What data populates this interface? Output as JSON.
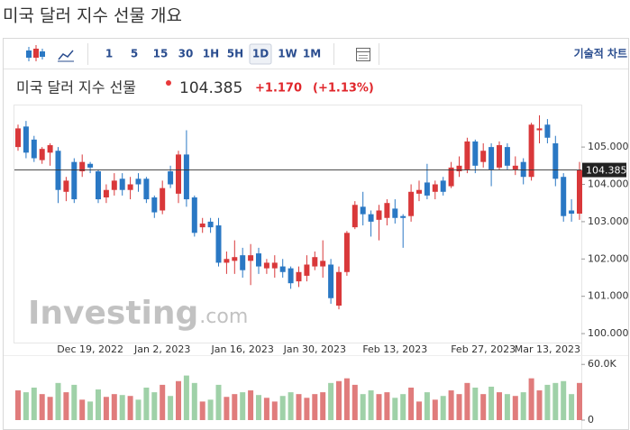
{
  "header": {
    "title": "미국 달러 지수 선물 개요",
    "instrument": "미국 달러 지수 선물",
    "last_price": "104.385",
    "change": "+1.170",
    "change_percent": "(+1.13%)"
  },
  "toolbar": {
    "intervals": [
      "1",
      "5",
      "15",
      "30",
      "1H",
      "5H",
      "1D",
      "1W",
      "1M"
    ],
    "selected": "1D",
    "technical_chart": "기술적 차트"
  },
  "watermark": {
    "brand": "Investing",
    "suffix": ".com"
  },
  "chart_data": {
    "type": "candlestick",
    "categories": [
      null,
      null,
      null,
      null,
      null,
      null,
      null,
      null,
      null,
      "Dec 19, 2022",
      null,
      null,
      null,
      null,
      null,
      null,
      null,
      null,
      "Jan 2, 2023",
      null,
      null,
      null,
      null,
      null,
      null,
      null,
      null,
      null,
      "Jan 16, 2023",
      null,
      null,
      null,
      null,
      null,
      null,
      null,
      null,
      "Jan 30, 2023",
      null,
      null,
      null,
      null,
      null,
      null,
      null,
      null,
      null,
      "Feb 13, 2023",
      null,
      null,
      null,
      null,
      null,
      null,
      null,
      null,
      null,
      null,
      "Feb 27, 2023",
      null,
      null,
      null,
      null,
      null,
      null,
      null,
      "Mar 13, 2023",
      null,
      null,
      null,
      null
    ],
    "open": [
      105.0,
      105.55,
      105.2,
      104.65,
      104.85,
      104.9,
      103.8,
      104.6,
      104.35,
      104.55,
      104.35,
      103.65,
      103.85,
      104.15,
      103.85,
      104.15,
      104.15,
      103.65,
      103.3,
      104.35,
      103.75,
      104.8,
      103.65,
      102.85,
      103.0,
      102.9,
      101.9,
      101.95,
      102.1,
      101.95,
      102.15,
      101.75,
      101.75,
      101.8,
      101.75,
      101.4,
      101.55,
      101.8,
      101.8,
      101.85,
      100.75,
      101.65,
      102.85,
      103.4,
      103.2,
      103.05,
      103.1,
      103.35,
      103.15,
      103.15,
      103.75,
      104.05,
      103.8,
      104.1,
      103.95,
      104.35,
      104.4,
      105.15,
      104.6,
      105.0,
      104.45,
      105.0,
      104.4,
      104.6,
      104.2,
      105.45,
      105.6,
      105.1,
      104.2,
      103.3,
      103.215
    ],
    "high": [
      105.6,
      105.7,
      105.3,
      105.0,
      105.1,
      105.0,
      104.2,
      104.7,
      104.8,
      104.6,
      104.4,
      104.0,
      104.3,
      104.3,
      104.2,
      104.3,
      104.2,
      103.7,
      104.1,
      104.5,
      104.9,
      105.45,
      103.7,
      103.1,
      103.1,
      103.1,
      102.2,
      102.5,
      102.3,
      102.4,
      102.3,
      102.0,
      102.1,
      102.0,
      101.8,
      101.8,
      102.1,
      102.2,
      102.5,
      102.0,
      101.8,
      102.75,
      103.55,
      103.8,
      103.3,
      103.45,
      103.6,
      103.6,
      103.2,
      104.0,
      104.1,
      104.55,
      104.1,
      104.2,
      104.6,
      104.75,
      105.25,
      105.2,
      105.1,
      105.1,
      105.15,
      105.1,
      104.75,
      104.7,
      105.65,
      105.85,
      105.75,
      105.3,
      104.3,
      103.6,
      104.6
    ],
    "low": [
      104.9,
      104.7,
      104.6,
      104.55,
      104.5,
      103.5,
      103.55,
      103.5,
      104.2,
      104.3,
      103.5,
      103.5,
      103.7,
      103.7,
      103.6,
      103.8,
      103.5,
      103.1,
      103.2,
      103.9,
      103.5,
      103.4,
      102.6,
      102.7,
      102.7,
      101.8,
      101.6,
      101.6,
      101.5,
      101.3,
      101.6,
      101.6,
      101.5,
      101.5,
      101.2,
      101.25,
      101.4,
      101.7,
      101.5,
      100.8,
      100.65,
      101.55,
      102.8,
      102.9,
      102.6,
      102.5,
      102.9,
      102.95,
      102.3,
      103.0,
      103.55,
      103.6,
      103.6,
      103.7,
      103.9,
      104.2,
      104.3,
      104.3,
      104.45,
      103.95,
      104.4,
      104.4,
      104.25,
      104.0,
      104.1,
      105.1,
      105.1,
      103.95,
      103.0,
      103.0,
      103.05
    ],
    "close": [
      105.5,
      104.85,
      104.7,
      104.95,
      105.05,
      103.85,
      104.1,
      103.6,
      104.6,
      104.45,
      103.6,
      103.85,
      104.1,
      103.85,
      104.0,
      104.0,
      103.6,
      103.25,
      103.9,
      104.0,
      104.8,
      103.6,
      102.7,
      102.95,
      102.85,
      101.9,
      102.0,
      102.05,
      101.7,
      102.1,
      101.8,
      101.9,
      101.9,
      101.65,
      101.35,
      101.65,
      101.85,
      102.05,
      101.95,
      100.95,
      101.65,
      102.7,
      103.45,
      103.2,
      103.0,
      103.3,
      103.5,
      103.1,
      103.1,
      103.8,
      103.85,
      103.7,
      104.0,
      103.8,
      104.45,
      104.5,
      105.15,
      104.5,
      104.9,
      104.4,
      105.05,
      104.5,
      104.5,
      104.2,
      105.6,
      105.5,
      105.25,
      104.15,
      103.15,
      103.215,
      104.385
    ],
    "volume": [
      32000,
      30000,
      35000,
      28000,
      25000,
      40000,
      30000,
      38000,
      22000,
      20000,
      33000,
      25000,
      28000,
      27000,
      26000,
      22000,
      35000,
      30000,
      38000,
      26000,
      42000,
      48000,
      40000,
      20000,
      22000,
      38000,
      25000,
      28000,
      30000,
      32000,
      27000,
      24000,
      20000,
      26000,
      30000,
      28000,
      24000,
      28000,
      30000,
      40000,
      42000,
      45000,
      38000,
      28000,
      32000,
      28000,
      30000,
      24000,
      28000,
      35000,
      20000,
      30000,
      22000,
      26000,
      32000,
      28000,
      40000,
      35000,
      28000,
      36000,
      30000,
      28000,
      26000,
      30000,
      45000,
      32000,
      38000,
      40000,
      42000,
      28000,
      40000
    ],
    "up_color": "#d9383a",
    "down_color": "#2a78c4",
    "volume_up_color": "#e07c7c",
    "volume_down_color": "#9fd1a8",
    "ylim": [
      99.76,
      106.09
    ],
    "yticks": [
      {
        "value": 100,
        "label": "100.000"
      },
      {
        "value": 101,
        "label": "101.000"
      },
      {
        "value": 102,
        "label": "102.000"
      },
      {
        "value": 103,
        "label": "103.000"
      },
      {
        "value": 104,
        "label": "104.000"
      },
      {
        "value": 105,
        "label": "105.000"
      }
    ],
    "volume_ylim": [
      0,
      68000
    ],
    "volume_yticks": [
      {
        "value": 60000,
        "label": "60.0K"
      },
      0
    ],
    "grid": false
  }
}
